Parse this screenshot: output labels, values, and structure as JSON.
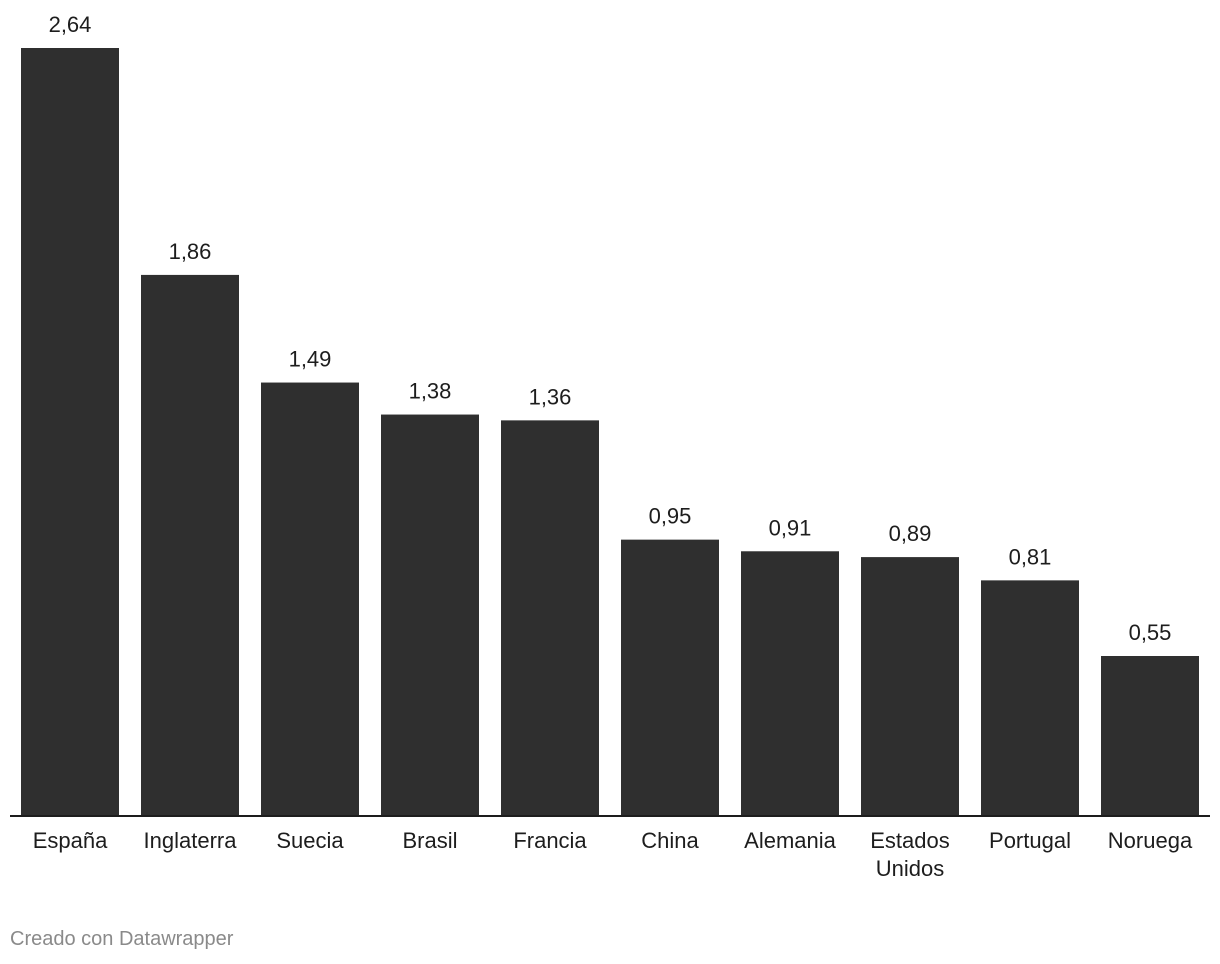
{
  "chart_data": {
    "type": "bar",
    "categories": [
      "España",
      "Inglaterra",
      "Suecia",
      "Brasil",
      "Francia",
      "China",
      "Alemania",
      "Estados Unidos",
      "Portugal",
      "Noruega"
    ],
    "values": [
      2.64,
      1.86,
      1.49,
      1.38,
      1.36,
      0.95,
      0.91,
      0.89,
      0.81,
      0.55
    ],
    "value_labels": [
      "2,64",
      "1,86",
      "1,49",
      "1,38",
      "1,36",
      "0,95",
      "0,91",
      "0,89",
      "0,81",
      "0,55"
    ],
    "title": "",
    "xlabel": "",
    "ylabel": "",
    "ylim": [
      0,
      2.64
    ],
    "grid": false,
    "bar_color": "#2f2f2f",
    "axis_color": "#1d1d1d"
  },
  "footer": {
    "credit": "Creado con Datawrapper"
  }
}
